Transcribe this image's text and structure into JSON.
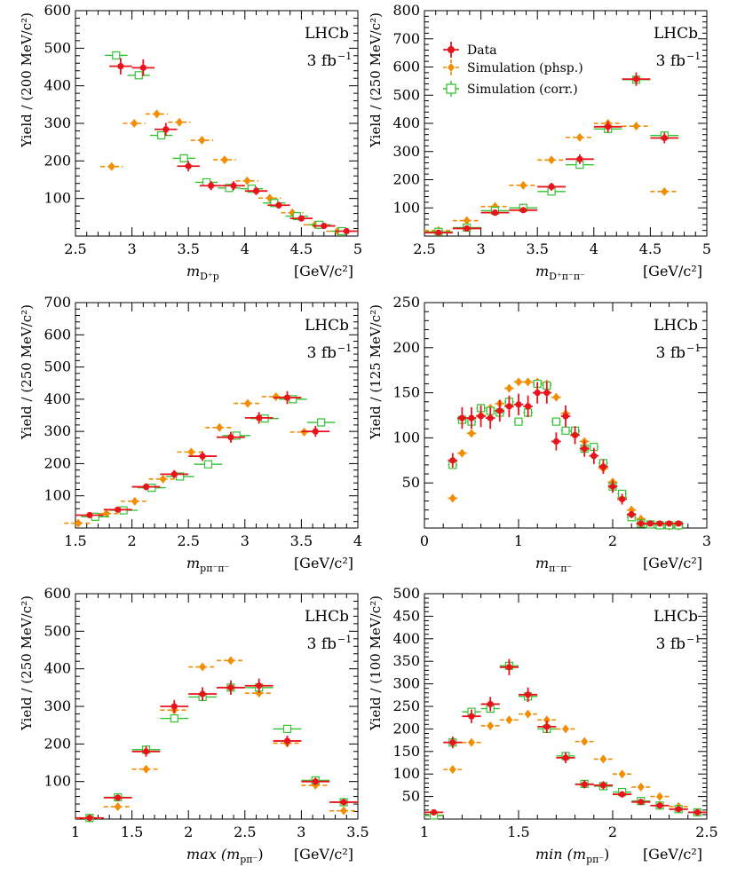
{
  "colors": {
    "data": "#e8141b",
    "phsp": "#f28c00",
    "corr": "#33c233",
    "axis": "#000000"
  },
  "legend": {
    "data": "Data",
    "phsp": "Simulation (phsp.)",
    "corr": "Simulation (corr.)"
  },
  "chart_data": [
    {
      "type": "scatter",
      "title": "",
      "experiment": "LHCb",
      "lumi": "3 fb",
      "xlabel": "m",
      "xsub": "D⁺p",
      "xunit": "[GeV/c²]",
      "ylabel": "Yield / (200 MeV/c²)",
      "xlim": [
        2.5,
        5
      ],
      "ylim": [
        0,
        600
      ],
      "xticks": [
        2.5,
        3,
        3.5,
        4,
        4.5,
        5
      ],
      "xticklabels": [
        "2.5",
        "3",
        "3.5",
        "4",
        "4.5",
        "5"
      ],
      "yticks": [
        100,
        200,
        300,
        400,
        500,
        600
      ],
      "yticklabels": [
        "100",
        "200",
        "300",
        "400",
        "500",
        "600"
      ],
      "legend": false,
      "series": [
        {
          "name": "Data",
          "marker": "dot",
          "xerr": 0.1,
          "x": [
            2.9,
            3.1,
            3.3,
            3.5,
            3.7,
            3.9,
            4.1,
            4.3,
            4.5,
            4.7,
            4.9
          ],
          "y": [
            452,
            448,
            284,
            186,
            134,
            134,
            120,
            82,
            47,
            27,
            13
          ],
          "yerr": [
            22,
            22,
            17,
            14,
            12,
            12,
            11,
            9,
            7,
            5,
            4
          ]
        },
        {
          "name": "Simulation (phsp.)",
          "marker": "diamond",
          "xerr": 0.1,
          "xoff": -0.08,
          "x": [
            2.9,
            3.1,
            3.3,
            3.5,
            3.7,
            3.9,
            4.1,
            4.3,
            4.5,
            4.7,
            4.9
          ],
          "y": [
            185,
            300,
            325,
            303,
            255,
            203,
            147,
            101,
            62,
            30,
            13
          ]
        },
        {
          "name": "Simulation (corr.)",
          "marker": "square",
          "xerr": 0.1,
          "xoff": -0.04,
          "x": [
            2.9,
            3.1,
            3.3,
            3.5,
            3.7,
            3.9,
            4.1,
            4.3,
            4.5,
            4.7,
            4.9
          ],
          "y": [
            481,
            428,
            268,
            207,
            143,
            128,
            126,
            88,
            53,
            30,
            13
          ]
        }
      ]
    },
    {
      "type": "scatter",
      "title": "",
      "experiment": "LHCb",
      "lumi": "3 fb",
      "xlabel": "m",
      "xsub": "D⁺π⁻π⁻",
      "xunit": "[GeV/c²]",
      "ylabel": "Yield / (250 MeV/c²)",
      "xlim": [
        2.5,
        5
      ],
      "ylim": [
        0,
        800
      ],
      "xticks": [
        2.5,
        3,
        3.5,
        4,
        4.5,
        5
      ],
      "xticklabels": [
        "2.5",
        "3",
        "3.5",
        "4",
        "4.5",
        "5"
      ],
      "yticks": [
        100,
        200,
        300,
        400,
        500,
        600,
        700,
        800
      ],
      "yticklabels": [
        "100",
        "200",
        "300",
        "400",
        "500",
        "600",
        "700",
        "800"
      ],
      "legend": true,
      "series": [
        {
          "name": "Data",
          "marker": "dot",
          "xerr": 0.125,
          "x": [
            2.625,
            2.875,
            3.125,
            3.375,
            3.625,
            3.875,
            4.125,
            4.375,
            4.625
          ],
          "y": [
            12,
            27,
            83,
            92,
            175,
            273,
            388,
            557,
            348
          ],
          "yerr": [
            4,
            5,
            9,
            10,
            14,
            17,
            20,
            24,
            19
          ]
        },
        {
          "name": "Simulation (phsp.)",
          "marker": "diamond",
          "xerr": 0.125,
          "xoff": 0.0,
          "x": [
            2.625,
            2.875,
            3.125,
            3.375,
            3.625,
            3.875,
            4.125,
            4.375,
            4.625
          ],
          "y": [
            20,
            55,
            105,
            180,
            270,
            350,
            400,
            390,
            158
          ]
        },
        {
          "name": "Simulation (corr.)",
          "marker": "square",
          "xerr": 0.125,
          "xoff": 0.0,
          "x": [
            2.625,
            2.875,
            3.125,
            3.375,
            3.625,
            3.875,
            4.125,
            4.375,
            4.625
          ],
          "y": [
            15,
            30,
            90,
            100,
            158,
            253,
            380,
            555,
            357
          ]
        }
      ]
    },
    {
      "type": "scatter",
      "title": "",
      "experiment": "LHCb",
      "lumi": "3 fb",
      "xlabel": "m",
      "xsub": "pπ⁻π⁻",
      "xunit": "[GeV/c²]",
      "ylabel": "Yield / (250 MeV/c²)",
      "xlim": [
        1.5,
        4
      ],
      "ylim": [
        0,
        700
      ],
      "xticks": [
        1.5,
        2,
        2.5,
        3,
        3.5,
        4
      ],
      "xticklabels": [
        "1.5",
        "2",
        "2.5",
        "3",
        "3.5",
        "4"
      ],
      "yticks": [
        100,
        200,
        300,
        400,
        500,
        600,
        700
      ],
      "yticklabels": [
        "100",
        "200",
        "300",
        "400",
        "500",
        "600",
        "700"
      ],
      "legend": false,
      "series": [
        {
          "name": "Data",
          "marker": "dot",
          "xerr": 0.125,
          "x": [
            1.625,
            1.875,
            2.125,
            2.375,
            2.625,
            2.875,
            3.125,
            3.375,
            3.625
          ],
          "y": [
            40,
            57,
            128,
            167,
            223,
            282,
            342,
            405,
            300
          ],
          "yerr": [
            6,
            8,
            11,
            13,
            15,
            17,
            18,
            20,
            17
          ]
        },
        {
          "name": "Simulation (phsp.)",
          "marker": "diamond",
          "xerr": 0.125,
          "xoff": -0.1,
          "x": [
            1.625,
            1.875,
            2.125,
            2.375,
            2.625,
            2.875,
            3.125,
            3.375,
            3.625
          ],
          "y": [
            15,
            45,
            83,
            152,
            236,
            312,
            387,
            408,
            298
          ]
        },
        {
          "name": "Simulation (corr.)",
          "marker": "square",
          "xerr": 0.125,
          "xoff": 0.05,
          "x": [
            1.625,
            1.875,
            2.125,
            2.375,
            2.625,
            2.875,
            3.125,
            3.375,
            3.625
          ],
          "y": [
            35,
            55,
            125,
            160,
            198,
            287,
            340,
            400,
            328
          ]
        }
      ]
    },
    {
      "type": "scatter",
      "title": "",
      "experiment": "LHCb",
      "lumi": "3 fb",
      "xlabel": "m",
      "xsub": "π⁻π⁻",
      "xunit": "[GeV/c²]",
      "ylabel": "Yield / (125 MeV/c²)",
      "xlim": [
        0,
        3
      ],
      "ylim": [
        0,
        250
      ],
      "xticks": [
        0,
        1,
        2,
        3
      ],
      "xticklabels": [
        "0",
        "1",
        "2",
        "3"
      ],
      "yticks": [
        50,
        100,
        150,
        200,
        250
      ],
      "yticklabels": [
        "50",
        "100",
        "150",
        "200",
        "250"
      ],
      "legend": false,
      "series": [
        {
          "name": "Data",
          "marker": "dot",
          "xerr": 0.05,
          "x": [
            0.3,
            0.4,
            0.5,
            0.6,
            0.7,
            0.8,
            0.9,
            1.0,
            1.1,
            1.2,
            1.3,
            1.4,
            1.5,
            1.6,
            1.7,
            1.8,
            1.9,
            2.0,
            2.1,
            2.2,
            2.3,
            2.4,
            2.5,
            2.6,
            2.7
          ],
          "y": [
            75,
            122,
            122,
            124,
            122,
            130,
            135,
            137,
            135,
            150,
            150,
            96,
            124,
            103,
            88,
            80,
            68,
            46,
            32,
            15,
            5,
            5,
            5,
            5,
            5
          ],
          "yerr": [
            8,
            12,
            12,
            12,
            12,
            12,
            12,
            12,
            12,
            12,
            12,
            10,
            12,
            10,
            9,
            9,
            8,
            7,
            6,
            4,
            3,
            3,
            3,
            3,
            3
          ]
        },
        {
          "name": "Simulation (phsp.)",
          "marker": "diamond",
          "xerr": 0.05,
          "xoff": 0.0,
          "x": [
            0.3,
            0.4,
            0.5,
            0.6,
            0.7,
            0.8,
            0.9,
            1.0,
            1.1,
            1.2,
            1.3,
            1.4,
            1.5,
            1.6,
            1.7,
            1.8,
            1.9,
            2.0,
            2.1,
            2.2,
            2.3,
            2.4,
            2.5,
            2.6,
            2.7
          ],
          "y": [
            33,
            83,
            105,
            125,
            133,
            138,
            155,
            162,
            162,
            162,
            160,
            145,
            127,
            107,
            96,
            80,
            66,
            51,
            34,
            20,
            10,
            4,
            3,
            2,
            2
          ]
        },
        {
          "name": "Simulation (corr.)",
          "marker": "square",
          "xerr": 0.05,
          "xoff": 0.0,
          "x": [
            0.3,
            0.4,
            0.5,
            0.6,
            0.7,
            0.8,
            0.9,
            1.0,
            1.1,
            1.2,
            1.3,
            1.4,
            1.5,
            1.6,
            1.7,
            1.8,
            1.9,
            2.0,
            2.1,
            2.2,
            2.3,
            2.4,
            2.5,
            2.6,
            2.7
          ],
          "y": [
            70,
            120,
            118,
            133,
            130,
            128,
            140,
            118,
            128,
            160,
            158,
            118,
            108,
            108,
            88,
            90,
            72,
            46,
            38,
            12,
            5,
            4,
            3,
            3,
            3
          ]
        }
      ]
    },
    {
      "type": "scatter",
      "title": "",
      "experiment": "LHCb",
      "lumi": "3 fb",
      "xlabel": "max (m",
      "xsub": "pπ⁻",
      "xlabelTail": ")",
      "xunit": "[GeV/c²]",
      "ylabel": "Yield / (250 MeV/c²)",
      "xlim": [
        1,
        3.5
      ],
      "ylim": [
        0,
        600
      ],
      "xticks": [
        1,
        1.5,
        2,
        2.5,
        3,
        3.5
      ],
      "xticklabels": [
        "1",
        "1.5",
        "2",
        "2.5",
        "3",
        "3.5"
      ],
      "yticks": [
        100,
        200,
        300,
        400,
        500,
        600
      ],
      "yticklabels": [
        "100",
        "200",
        "300",
        "400",
        "500",
        "600"
      ],
      "legend": false,
      "series": [
        {
          "name": "Data",
          "marker": "dot",
          "xerr": 0.125,
          "x": [
            1.125,
            1.375,
            1.625,
            1.875,
            2.125,
            2.375,
            2.625,
            2.875,
            3.125,
            3.375
          ],
          "y": [
            3,
            57,
            180,
            300,
            333,
            350,
            355,
            208,
            100,
            45
          ],
          "yerr": [
            2,
            8,
            14,
            17,
            18,
            19,
            19,
            14,
            10,
            7
          ]
        },
        {
          "name": "Simulation (phsp.)",
          "marker": "diamond",
          "xerr": 0.125,
          "xoff": 0.0,
          "x": [
            1.125,
            1.375,
            1.625,
            1.875,
            2.125,
            2.375,
            2.625,
            2.875,
            3.125,
            3.375
          ],
          "y": [
            2,
            33,
            133,
            290,
            405,
            422,
            335,
            202,
            90,
            22
          ]
        },
        {
          "name": "Simulation (corr.)",
          "marker": "square",
          "xerr": 0.125,
          "xoff": 0.0,
          "x": [
            1.125,
            1.375,
            1.625,
            1.875,
            2.125,
            2.375,
            2.625,
            2.875,
            3.125,
            3.375
          ],
          "y": [
            3,
            58,
            185,
            268,
            325,
            350,
            350,
            240,
            103,
            45
          ]
        }
      ]
    },
    {
      "type": "scatter",
      "title": "",
      "experiment": "LHCb",
      "lumi": "3 fb",
      "xlabel": "min (m",
      "xsub": "pπ⁻",
      "xlabelTail": ")",
      "xunit": "[GeV/c²]",
      "ylabel": "Yield / (100 MeV/c²)",
      "xlim": [
        1,
        2.5
      ],
      "ylim": [
        0,
        500
      ],
      "xticks": [
        1,
        1.5,
        2,
        2.5
      ],
      "xticklabels": [
        "1",
        "1.5",
        "2",
        "2.5"
      ],
      "yticks": [
        50,
        100,
        150,
        200,
        250,
        300,
        350,
        400,
        450,
        500
      ],
      "yticklabels": [
        "50",
        "100",
        "150",
        "200",
        "250",
        "300",
        "350",
        "400",
        "450",
        "500"
      ],
      "legend": false,
      "series": [
        {
          "name": "Data",
          "marker": "dot",
          "xerr": 0.05,
          "x": [
            1.05,
            1.15,
            1.25,
            1.35,
            1.45,
            1.55,
            1.65,
            1.75,
            1.85,
            1.95,
            2.05,
            2.15,
            2.25,
            2.35,
            2.45
          ],
          "y": [
            15,
            170,
            228,
            255,
            337,
            276,
            205,
            136,
            77,
            75,
            55,
            38,
            30,
            22,
            15
          ],
          "yerr": [
            4,
            13,
            15,
            16,
            18,
            16,
            14,
            12,
            9,
            9,
            7,
            6,
            5,
            5,
            4
          ]
        },
        {
          "name": "Simulation (phsp.)",
          "marker": "diamond",
          "xerr": 0.05,
          "xoff": 0.0,
          "x": [
            1.05,
            1.15,
            1.25,
            1.35,
            1.45,
            1.55,
            1.65,
            1.75,
            1.85,
            1.95,
            2.05,
            2.15,
            2.25,
            2.35,
            2.45
          ],
          "y": [
            8,
            110,
            170,
            207,
            220,
            233,
            220,
            200,
            172,
            133,
            100,
            71,
            50,
            28,
            15
          ]
        },
        {
          "name": "Simulation (corr.)",
          "marker": "square",
          "xerr": 0.05,
          "xoff": 0.0,
          "x": [
            1.05,
            1.15,
            1.25,
            1.35,
            1.45,
            1.55,
            1.65,
            1.75,
            1.85,
            1.95,
            2.05,
            2.15,
            2.25,
            2.35,
            2.45
          ],
          "y": [
            8,
            170,
            238,
            245,
            340,
            272,
            200,
            140,
            78,
            73,
            60,
            40,
            30,
            22,
            15
          ]
        }
      ]
    }
  ]
}
